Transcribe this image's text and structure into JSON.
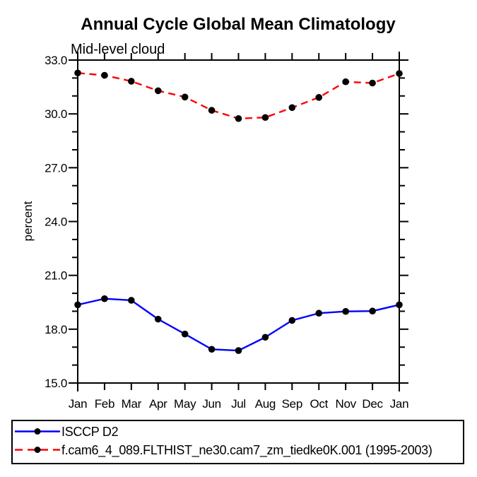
{
  "chart_data": {
    "type": "line",
    "title": "Annual Cycle Global Mean Climatology",
    "subtitle": "Mid-level cloud",
    "ylabel": "percent",
    "xlabel": "",
    "x_tick_labels": [
      "Jan",
      "Feb",
      "Mar",
      "Apr",
      "May",
      "Jun",
      "Jul",
      "Aug",
      "Sep",
      "Oct",
      "Nov",
      "Dec",
      "Jan"
    ],
    "ylim": [
      15.0,
      33.0
    ],
    "y_major_step": 3.0,
    "y_minor_step": 1.0,
    "y_major_labels": [
      "15.0",
      "18.0",
      "21.0",
      "24.0",
      "27.0",
      "30.0",
      "33.0"
    ],
    "grid": false,
    "legend_position": "bottom-left-box",
    "axis_color": "#000000",
    "marker_color": "#000000",
    "background_color": "#ffffff",
    "series": [
      {
        "name": "ISCCP D2",
        "color": "#0000ff",
        "style": "solid",
        "marker": "filled-circle",
        "values": [
          19.36,
          19.7,
          19.61,
          18.56,
          17.73,
          16.88,
          16.81,
          17.55,
          18.49,
          18.89,
          18.99,
          19.01,
          19.36
        ]
      },
      {
        "name": "f.cam6_4_089.FLTHIST_ne30.cam7_zm_tiedke0K.001 (1995-2003)",
        "color": "#ff0000",
        "style": "dashed",
        "marker": "filled-circle",
        "values": [
          32.28,
          32.15,
          31.82,
          31.29,
          30.94,
          30.2,
          29.74,
          29.8,
          30.35,
          30.92,
          31.79,
          31.72,
          32.25
        ]
      }
    ]
  }
}
